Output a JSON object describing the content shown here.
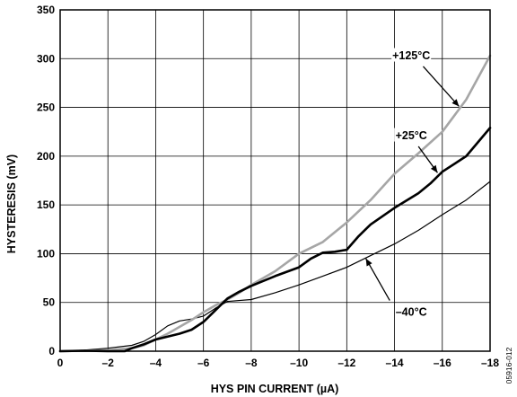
{
  "chart_data": {
    "type": "line",
    "xlabel": "HYS PIN CURRENT (µA)",
    "ylabel": "HYSTERESIS (mV)",
    "xlim": [
      0,
      -18
    ],
    "ylim": [
      0,
      350
    ],
    "x_ticks": [
      0,
      -2,
      -4,
      -6,
      -8,
      -10,
      -12,
      -14,
      -16,
      -18
    ],
    "x_tick_labels": [
      "0",
      "–2",
      "–4",
      "–6",
      "–8",
      "–10",
      "–12",
      "–14",
      "–16",
      "–18"
    ],
    "y_ticks": [
      0,
      50,
      100,
      150,
      200,
      250,
      300,
      350
    ],
    "y_tick_labels": [
      "0",
      "50",
      "100",
      "150",
      "200",
      "250",
      "300",
      "350"
    ],
    "grid": true,
    "series": [
      {
        "name": "+125°C",
        "color": "#a6a6a6",
        "style": "thick",
        "x": [
          0,
          -1,
          -2,
          -3,
          -3.5,
          -4,
          -4.5,
          -5,
          -5.5,
          -6,
          -6.5,
          -7,
          -7.5,
          -8,
          -9,
          -10,
          -10.5,
          -11,
          -12,
          -13,
          -14,
          -15,
          -16,
          -17,
          -18
        ],
        "y": [
          0,
          0.5,
          1,
          3,
          6,
          12,
          18,
          25,
          32,
          40,
          47,
          53,
          60,
          68,
          82,
          100,
          106,
          112,
          132,
          155,
          182,
          203,
          225,
          258,
          303
        ]
      },
      {
        "name": "+25°C",
        "color": "#000000",
        "style": "thick",
        "x": [
          0,
          -1,
          -2,
          -2.7,
          -3,
          -3.5,
          -4,
          -4.5,
          -5,
          -5.5,
          -6,
          -6.5,
          -7,
          -7.5,
          -8,
          -9,
          -10,
          -10.5,
          -11,
          -11.5,
          -12,
          -12.5,
          -13,
          -14,
          -15,
          -15.5,
          -16,
          -17,
          -18
        ],
        "y": [
          0,
          0.5,
          0,
          0,
          3,
          7,
          12,
          15,
          18,
          22,
          30,
          42,
          54,
          61,
          67,
          77,
          86,
          95,
          101,
          102,
          104,
          118,
          130,
          147,
          162,
          172,
          184,
          200,
          229
        ]
      },
      {
        "name": "–40°C",
        "color": "#000000",
        "style": "thin",
        "x": [
          0,
          -1,
          -2,
          -3,
          -3.5,
          -4,
          -4.5,
          -5,
          -5.5,
          -6,
          -6.5,
          -7,
          -8,
          -9,
          -10,
          -11,
          -12,
          -13,
          -14,
          -15,
          -16,
          -17,
          -18
        ],
        "y": [
          0,
          1,
          3,
          6,
          10,
          17,
          26,
          31,
          33,
          36,
          44,
          51,
          53,
          60,
          68,
          77,
          86,
          98,
          110,
          124,
          140,
          155,
          174
        ]
      }
    ],
    "annotations": [
      {
        "text": "+125°C"
      },
      {
        "text": "+25°C"
      },
      {
        "text": "–40°C"
      }
    ],
    "figure_id": "05916-012"
  }
}
